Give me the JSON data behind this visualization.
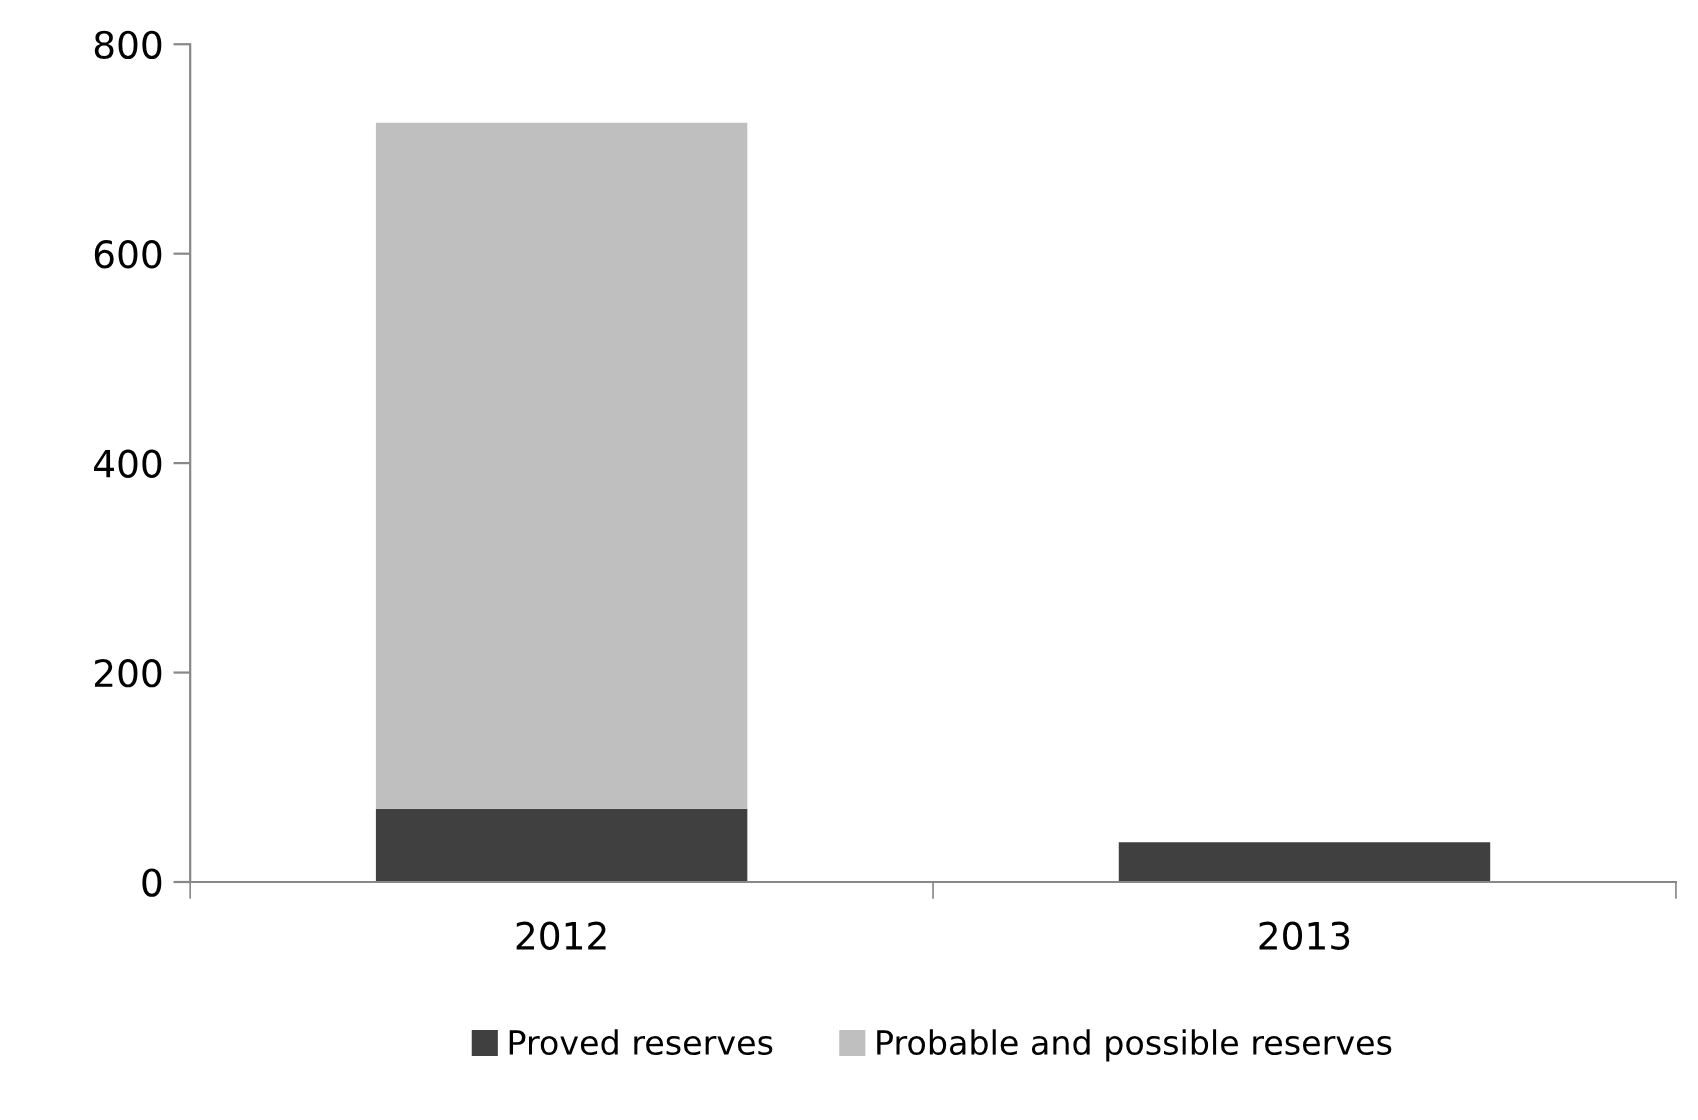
{
  "chart_data": {
    "type": "bar",
    "stacked": true,
    "categories": [
      "2012",
      "2013"
    ],
    "series": [
      {
        "name": "Proved reserves",
        "color": "#404040",
        "values": [
          70,
          38
        ]
      },
      {
        "name": "Probable and possible reserves",
        "color": "#bfbfbf",
        "values": [
          655,
          null
        ]
      }
    ],
    "ylim": [
      0,
      800
    ],
    "yticks": [
      0,
      200,
      400,
      600,
      800
    ],
    "grid": false,
    "legend": "bottom"
  }
}
